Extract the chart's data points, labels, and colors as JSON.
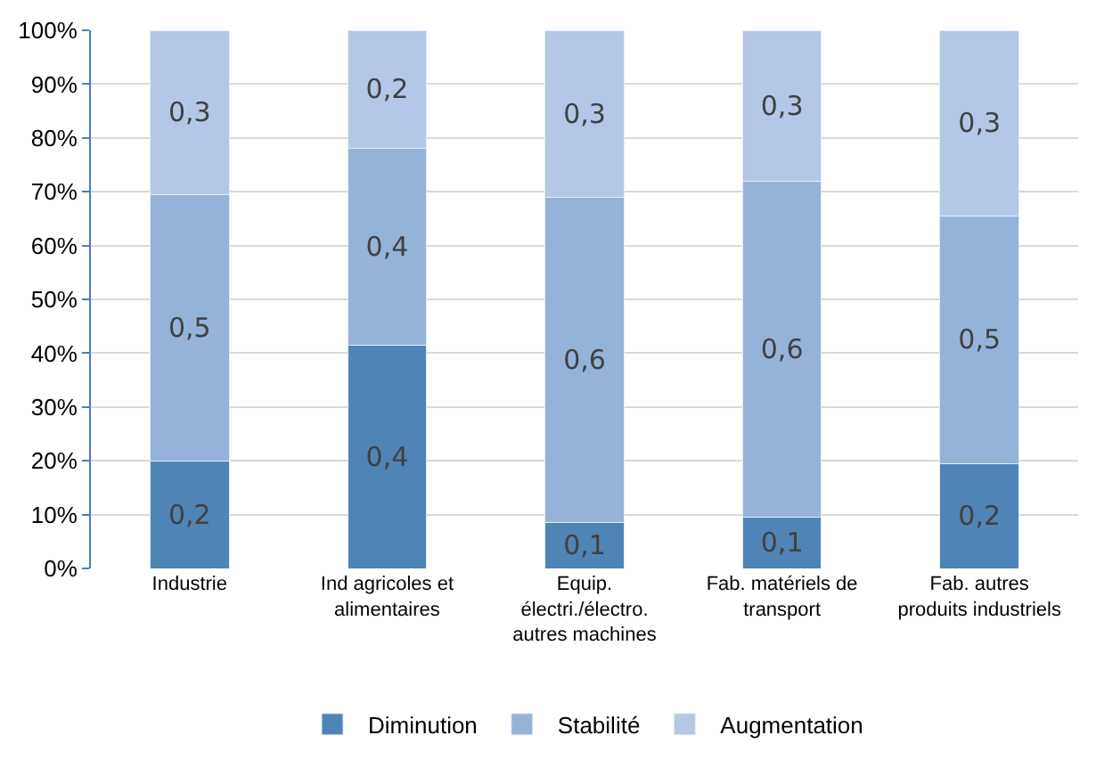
{
  "chart_data": {
    "type": "bar",
    "stacked": true,
    "categories": [
      "Industrie",
      "Ind agricoles et\nalimentaires",
      "Equip.\nélectri./électro.\nautres machines",
      "Fab. matériels de\ntransport",
      "Fab. autres\nproduits industriels"
    ],
    "series": [
      {
        "name": "Diminution",
        "color": "#4f84b6",
        "values": [
          0.2,
          0.415,
          0.085,
          0.095,
          0.195
        ],
        "value_labels": [
          "0,2",
          "0,4",
          "0,1",
          "0,1",
          "0,2"
        ]
      },
      {
        "name": "Stabilité",
        "color": "#95b3d9",
        "values": [
          0.495,
          0.365,
          0.605,
          0.625,
          0.46
        ],
        "value_labels": [
          "0,5",
          "0,4",
          "0,6",
          "0,6",
          "0,5"
        ]
      },
      {
        "name": "Augmentation",
        "color": "#b4c7e7",
        "values": [
          0.305,
          0.22,
          0.31,
          0.28,
          0.345
        ],
        "value_labels": [
          "0,3",
          "0,2",
          "0,3",
          "0,3",
          "0,3"
        ]
      }
    ],
    "ylim": [
      0,
      1
    ],
    "yticks": [
      {
        "value": 0,
        "label": "0%"
      },
      {
        "value": 0.1,
        "label": "10%"
      },
      {
        "value": 0.2,
        "label": "20%"
      },
      {
        "value": 0.3,
        "label": "30%"
      },
      {
        "value": 0.4,
        "label": "40%"
      },
      {
        "value": 0.5,
        "label": "50%"
      },
      {
        "value": 0.6,
        "label": "60%"
      },
      {
        "value": 0.7,
        "label": "70%"
      },
      {
        "value": 0.8,
        "label": "80%"
      },
      {
        "value": 0.9,
        "label": "90%"
      },
      {
        "value": 1,
        "label": "100%"
      }
    ],
    "grid": "y",
    "legend": "bottom"
  }
}
